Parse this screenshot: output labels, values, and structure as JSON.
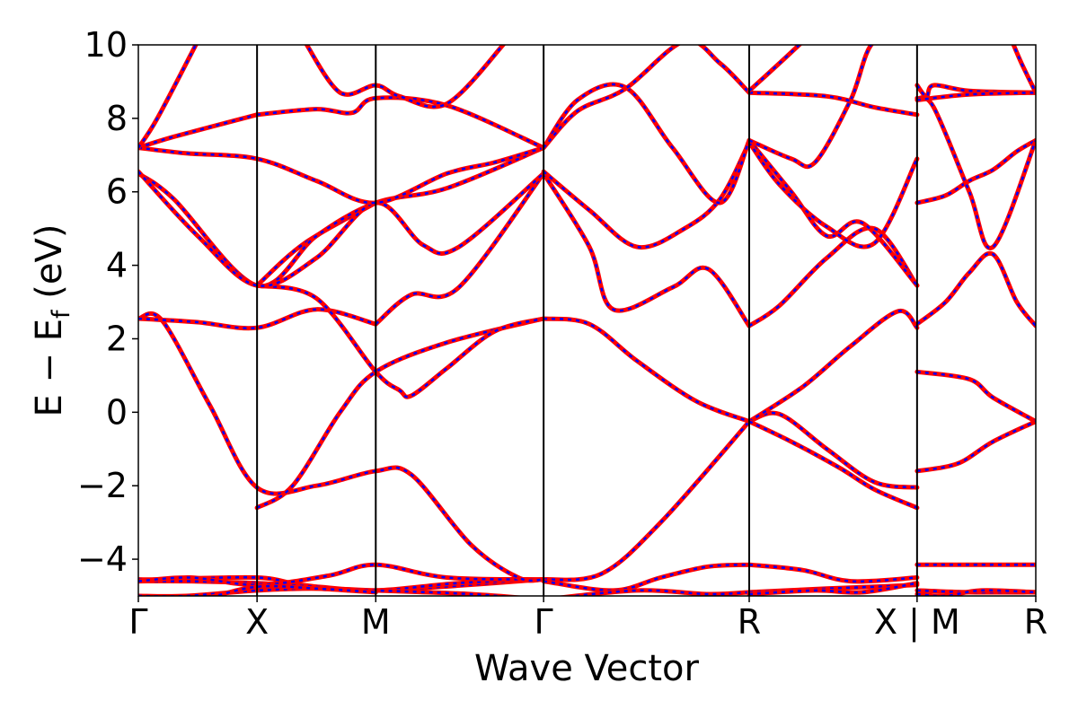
{
  "chart_data": {
    "type": "line",
    "title": "",
    "xlabel": "Wave Vector",
    "ylabel": {
      "main": "E − E",
      "subscript": "f",
      "unit": "(eV)"
    },
    "ylim": [
      -5,
      10
    ],
    "yticks": [
      -4,
      -2,
      0,
      2,
      4,
      6,
      8,
      10
    ],
    "ytick_labels": [
      "−4",
      "−2",
      "0",
      "2",
      "4",
      "6",
      "8",
      "10"
    ],
    "grid": false,
    "legend": "none",
    "colors": {
      "band_solid": "#ff0000",
      "band_dashed": "#0000ff",
      "frame": "#000000"
    },
    "path_distances": [
      0,
      0.5,
      1.0,
      1.707,
      2.573,
      3.28,
      3.78
    ],
    "kpoint_labels": [
      "Γ",
      "X",
      "M",
      "Γ",
      "R",
      "X | M",
      "R"
    ],
    "segments": [
      "Γ-X",
      "X-M",
      "M-Γ",
      "Γ-R",
      "R-X",
      "M-R"
    ],
    "series": [
      {
        "x": [
          0,
          0.08,
          0.5,
          0.69,
          1.0,
          1.707
        ],
        "y": [
          -4.55,
          -4.55,
          -4.5,
          -4.7,
          -4.85,
          -4.55
        ]
      },
      {
        "x": [
          0,
          0.22,
          0.5,
          0.75,
          1.0,
          1.35,
          1.707
        ],
        "y": [
          -4.6,
          -4.6,
          -4.65,
          -4.75,
          -4.85,
          -4.65,
          -4.55
        ]
      },
      {
        "x": [
          0,
          0.22,
          0.5,
          0.8,
          1.0,
          1.3,
          1.707
        ],
        "y": [
          -4.6,
          -4.5,
          -4.7,
          -4.45,
          -4.15,
          -4.5,
          -4.55
        ]
      },
      {
        "x": [
          0,
          0.2,
          0.5,
          0.75,
          1.0,
          1.4,
          1.707
        ],
        "y": [
          -5.0,
          -5.0,
          -4.85,
          -4.8,
          -4.85,
          -4.95,
          -5.1
        ]
      },
      {
        "x": [
          0,
          0.1,
          0.3,
          0.5,
          0.75,
          1.0,
          1.15,
          1.4,
          1.6,
          1.707
        ],
        "y": [
          2.55,
          2.5,
          0.2,
          -2.05,
          -2.0,
          -1.6,
          -1.7,
          -3.6,
          -4.5,
          -4.55
        ]
      },
      {
        "x": [
          0,
          0.25,
          0.5,
          0.75,
          1.0
        ],
        "y": [
          2.55,
          2.45,
          2.3,
          2.8,
          2.4
        ]
      },
      {
        "x": [
          1.0,
          1.15,
          1.35,
          1.707
        ],
        "y": [
          2.4,
          3.2,
          3.4,
          6.5
        ]
      },
      {
        "x": [
          0.5,
          0.65,
          0.85,
          1.0,
          1.3,
          1.707
        ],
        "y": [
          -2.6,
          -2.0,
          0.0,
          1.1,
          1.9,
          2.55
        ]
      },
      {
        "x": [
          0,
          0.25,
          0.5,
          0.75,
          1.0
        ],
        "y": [
          -5.2,
          -5.1,
          -4.75,
          -4.8,
          -4.9
        ]
      },
      {
        "x": [
          0.5,
          0.75,
          1.0,
          1.1,
          1.15,
          1.3,
          1.5,
          1.707
        ],
        "y": [
          3.45,
          3.1,
          1.1,
          0.6,
          0.45,
          1.2,
          2.2,
          2.55
        ]
      },
      {
        "x": [
          0.5,
          0.7,
          1.0
        ],
        "y": [
          3.45,
          4.6,
          5.7
        ]
      },
      {
        "x": [
          0,
          0.15,
          0.5,
          0.75,
          1.0,
          1.3,
          1.707
        ],
        "y": [
          6.5,
          5.8,
          3.45,
          4.8,
          5.7,
          6.1,
          7.2
        ]
      },
      {
        "x": [
          0,
          0.25,
          0.5,
          0.75,
          1.0,
          1.2,
          1.35,
          1.707
        ],
        "y": [
          6.55,
          4.8,
          3.45,
          4.2,
          5.7,
          4.55,
          4.5,
          6.5
        ]
      },
      {
        "x": [
          0,
          0.15,
          0.5
        ],
        "y": [
          7.2,
          7.5,
          8.1
        ]
      },
      {
        "x": [
          0.5,
          0.75,
          0.9,
          1.0,
          1.3,
          1.707
        ],
        "y": [
          8.1,
          8.25,
          8.15,
          8.55,
          8.35,
          7.2
        ]
      },
      {
        "x": [
          0,
          0.2,
          0.5,
          0.75,
          1.0,
          1.3,
          1.5,
          1.707
        ],
        "y": [
          7.2,
          7.05,
          6.9,
          6.3,
          5.7,
          6.5,
          6.8,
          7.2
        ]
      },
      {
        "x": [
          0,
          0.08,
          0.25
        ],
        "y": [
          7.2,
          8.0,
          10.1
        ]
      },
      {
        "x": [
          0.7,
          0.85,
          1.0,
          1.1,
          1.3,
          1.55
        ],
        "y": [
          10.1,
          8.7,
          8.9,
          8.6,
          8.4,
          10.1
        ]
      },
      {
        "x": [
          1.707,
          1.9,
          2.1,
          2.35,
          2.573
        ],
        "y": [
          2.55,
          2.4,
          1.4,
          0.3,
          -0.25
        ]
      },
      {
        "x": [
          1.707,
          1.95,
          2.2,
          2.573
        ],
        "y": [
          -4.55,
          -4.4,
          -3.0,
          -0.25
        ]
      },
      {
        "x": [
          1.707,
          1.9,
          2.0,
          2.25,
          2.4,
          2.573
        ],
        "y": [
          6.5,
          4.5,
          2.8,
          3.4,
          3.9,
          2.35
        ]
      },
      {
        "x": [
          1.707,
          1.9,
          2.1,
          2.3,
          2.45,
          2.573
        ],
        "y": [
          6.55,
          5.5,
          4.5,
          5.0,
          5.8,
          7.35
        ]
      },
      {
        "x": [
          1.707,
          1.85,
          2.05,
          2.25,
          2.45,
          2.573
        ],
        "y": [
          7.2,
          8.5,
          8.85,
          7.2,
          5.7,
          7.4
        ]
      },
      {
        "x": [
          1.707,
          1.85,
          2.05,
          2.3,
          2.45,
          2.573
        ],
        "y": [
          7.2,
          8.2,
          8.8,
          10.1,
          9.5,
          8.7
        ]
      },
      {
        "x": [
          1.707,
          2.0,
          2.2,
          2.4,
          2.573
        ],
        "y": [
          -4.6,
          -4.85,
          -4.5,
          -4.2,
          -4.15
        ]
      },
      {
        "x": [
          1.707,
          2.1,
          2.4,
          2.573
        ],
        "y": [
          -5.1,
          -4.85,
          -4.95,
          -4.9
        ]
      },
      {
        "x": [
          2.573,
          2.7,
          2.9,
          3.1,
          3.28
        ],
        "y": [
          -0.25,
          -0.05,
          -1.0,
          -1.9,
          -2.05
        ]
      },
      {
        "x": [
          2.573,
          2.8,
          3.0,
          3.2,
          3.28
        ],
        "y": [
          -0.25,
          0.7,
          1.8,
          2.75,
          2.3
        ]
      },
      {
        "x": [
          2.573,
          2.75,
          2.95,
          3.1,
          3.28
        ],
        "y": [
          -0.25,
          -0.8,
          -1.5,
          -2.1,
          -2.6
        ]
      },
      {
        "x": [
          2.573,
          2.7,
          2.9,
          3.1,
          3.28
        ],
        "y": [
          2.35,
          2.9,
          4.2,
          5.0,
          3.45
        ]
      },
      {
        "x": [
          2.573,
          2.75,
          2.9,
          3.05,
          3.28
        ],
        "y": [
          7.4,
          6.0,
          4.8,
          5.15,
          3.45
        ]
      },
      {
        "x": [
          2.573,
          2.7,
          2.9,
          3.1,
          3.28
        ],
        "y": [
          7.35,
          6.2,
          5.05,
          4.6,
          6.9
        ]
      },
      {
        "x": [
          2.573,
          2.75,
          2.85,
          3.0,
          3.1,
          3.28
        ],
        "y": [
          7.4,
          6.9,
          6.8,
          8.5,
          10.1,
          10.1
        ]
      },
      {
        "x": [
          2.573,
          2.9,
          3.1,
          3.28
        ],
        "y": [
          8.7,
          8.6,
          8.3,
          8.1
        ]
      },
      {
        "x": [
          2.573,
          2.7,
          2.8
        ],
        "y": [
          8.75,
          9.5,
          10.1
        ]
      },
      {
        "x": [
          2.573,
          2.8,
          3.0,
          3.28
        ],
        "y": [
          -4.15,
          -4.3,
          -4.6,
          -4.5
        ]
      },
      {
        "x": [
          2.573,
          2.9,
          3.1,
          3.28
        ],
        "y": [
          -4.9,
          -4.8,
          -4.75,
          -4.7
        ]
      },
      {
        "x": [
          2.573,
          2.85,
          3.05,
          3.28
        ],
        "y": [
          -4.95,
          -4.85,
          -4.9,
          -4.65
        ]
      },
      {
        "x": [
          3.28,
          3.5,
          3.6,
          3.78
        ],
        "y": [
          1.1,
          0.9,
          0.4,
          -0.25
        ]
      },
      {
        "x": [
          3.28,
          3.45,
          3.6,
          3.78
        ],
        "y": [
          -1.6,
          -1.4,
          -0.8,
          -0.25
        ]
      },
      {
        "x": [
          3.28,
          3.4,
          3.5,
          3.6,
          3.7,
          3.78
        ],
        "y": [
          2.4,
          3.0,
          3.8,
          4.3,
          3.0,
          2.35
        ]
      },
      {
        "x": [
          3.28,
          3.4,
          3.5,
          3.6,
          3.7,
          3.78
        ],
        "y": [
          5.7,
          5.9,
          6.3,
          6.6,
          7.1,
          7.4
        ]
      },
      {
        "x": [
          3.28,
          3.35,
          3.5,
          3.6,
          3.78
        ],
        "y": [
          8.55,
          8.3,
          6.0,
          4.5,
          7.4
        ]
      },
      {
        "x": [
          3.28,
          3.32,
          3.35,
          3.5,
          3.78
        ],
        "y": [
          8.9,
          8.6,
          8.9,
          8.75,
          8.7
        ]
      },
      {
        "x": [
          3.28,
          3.5,
          3.78
        ],
        "y": [
          8.5,
          8.65,
          8.7
        ]
      },
      {
        "x": [
          3.68,
          3.72,
          3.78
        ],
        "y": [
          10.1,
          9.5,
          8.7
        ]
      },
      {
        "x": [
          3.28,
          3.5,
          3.78
        ],
        "y": [
          -4.15,
          -4.15,
          -4.15
        ]
      },
      {
        "x": [
          3.28,
          3.5,
          3.78
        ],
        "y": [
          -4.85,
          -4.9,
          -4.9
        ]
      },
      {
        "x": [
          3.28,
          3.4,
          3.55,
          3.78
        ],
        "y": [
          -4.95,
          -5.0,
          -4.85,
          -4.9
        ]
      }
    ]
  }
}
